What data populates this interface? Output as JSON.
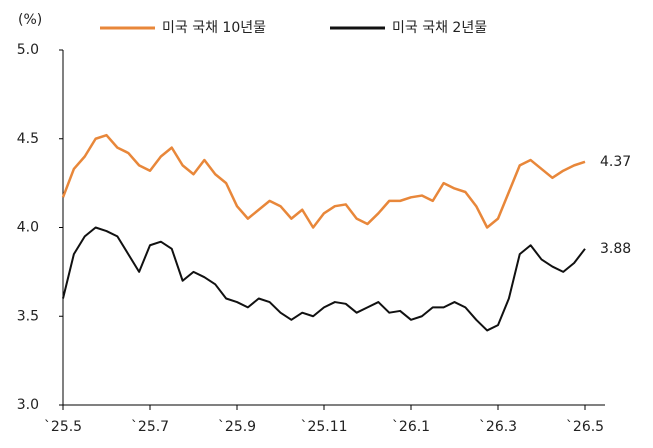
{
  "chart_data": {
    "type": "line",
    "y_label": "(%)",
    "categories": [
      "`25.5",
      null,
      null,
      null,
      null,
      null,
      null,
      null,
      "`25.7",
      null,
      null,
      null,
      null,
      null,
      null,
      null,
      "`25.9",
      null,
      null,
      null,
      null,
      null,
      null,
      null,
      "`25.11",
      null,
      null,
      null,
      null,
      null,
      null,
      null,
      "`26.1",
      null,
      null,
      null,
      null,
      null,
      null,
      null,
      "`26.3",
      null,
      null,
      null,
      null,
      null,
      null,
      null,
      "`26.5"
    ],
    "series": [
      {
        "name": "미국 국채 10년물",
        "color": "#e8873a",
        "values": [
          4.17,
          4.33,
          4.4,
          4.5,
          4.52,
          4.45,
          4.42,
          4.35,
          4.32,
          4.4,
          4.45,
          4.35,
          4.3,
          4.38,
          4.3,
          4.25,
          4.12,
          4.05,
          4.1,
          4.15,
          4.12,
          4.05,
          4.1,
          4.0,
          4.08,
          4.12,
          4.13,
          4.05,
          4.02,
          4.08,
          4.15,
          4.15,
          4.17,
          4.18,
          4.15,
          4.25,
          4.22,
          4.2,
          4.12,
          4.0,
          4.05,
          4.2,
          4.35,
          4.38,
          4.33,
          4.28,
          4.32,
          4.35,
          4.37
        ]
      },
      {
        "name": "미국 국채 2년물",
        "color": "#111111",
        "values": [
          3.6,
          3.85,
          3.95,
          4.0,
          3.98,
          3.95,
          3.85,
          3.75,
          3.9,
          3.92,
          3.88,
          3.7,
          3.75,
          3.72,
          3.68,
          3.6,
          3.58,
          3.55,
          3.6,
          3.58,
          3.52,
          3.48,
          3.52,
          3.5,
          3.55,
          3.58,
          3.57,
          3.52,
          3.55,
          3.58,
          3.52,
          3.53,
          3.48,
          3.5,
          3.55,
          3.55,
          3.58,
          3.55,
          3.48,
          3.42,
          3.45,
          3.6,
          3.85,
          3.9,
          3.82,
          3.78,
          3.75,
          3.8,
          3.88
        ]
      }
    ],
    "ylim": [
      3.0,
      5.0
    ],
    "yticks": [
      {
        "value": 3.0,
        "label": "3.0"
      },
      3.5,
      {
        "value": 4.0,
        "label": "4.0"
      },
      4.5,
      {
        "value": 5.0,
        "label": "5.0"
      }
    ],
    "grid": false,
    "legend": "top"
  }
}
